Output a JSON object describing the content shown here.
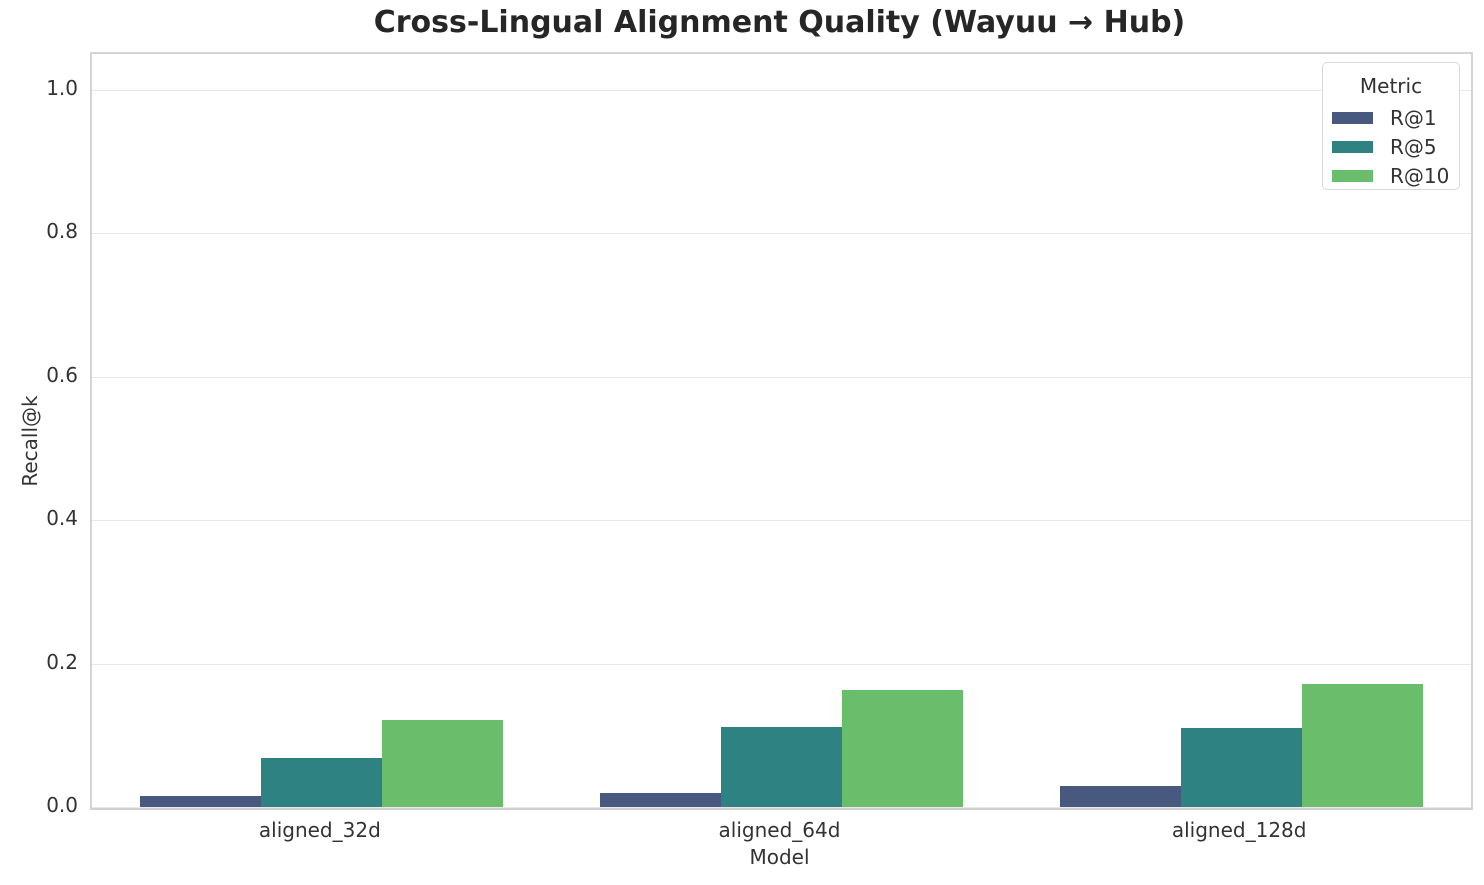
{
  "figure": {
    "title": "Cross-Lingual Alignment Quality (Wayuu → Hub)"
  },
  "chart_data": {
    "type": "bar",
    "title": "Cross-Lingual Alignment Quality (Wayuu → Hub)",
    "xlabel": "Model",
    "ylabel": "Recall@k",
    "categories": [
      "aligned_32d",
      "aligned_64d",
      "aligned_128d"
    ],
    "series": [
      {
        "name": "R@1",
        "color": "#47597e",
        "values": [
          0.016,
          0.02,
          0.029
        ]
      },
      {
        "name": "R@5",
        "color": "#2e8281",
        "values": [
          0.069,
          0.111,
          0.11
        ]
      },
      {
        "name": "R@10",
        "color": "#69bd6b",
        "values": [
          0.122,
          0.163,
          0.171
        ]
      }
    ],
    "ylim": [
      0,
      1.05
    ],
    "yticks": [
      0.0,
      0.2,
      0.4,
      0.6,
      0.8,
      1.0
    ],
    "ytick_labels": [
      "0.0",
      "0.2",
      "0.4",
      "0.6",
      "0.8",
      "1.0"
    ],
    "grid": "horizontal",
    "legend": {
      "title": "Metric",
      "position": "upper right"
    }
  },
  "colors": {
    "grid": "#e8e8e8",
    "frame": "#d4d4d4",
    "title_text": "#262626",
    "tick_text": "#333333"
  }
}
